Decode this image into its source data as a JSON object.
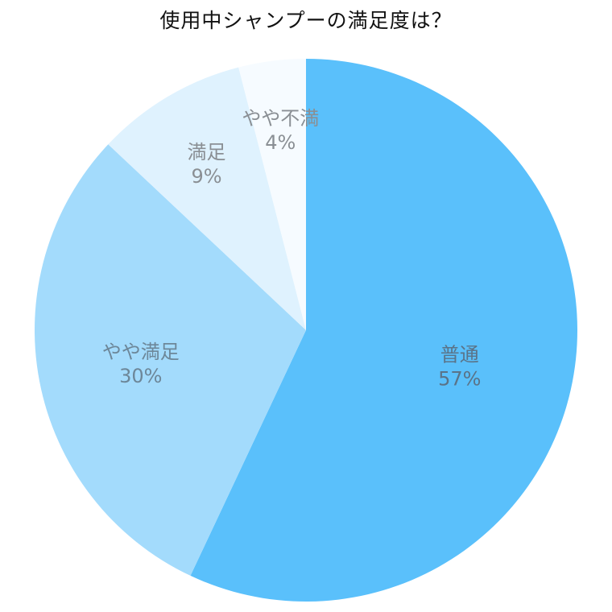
{
  "chart_data": {
    "type": "pie",
    "title": "使用中シャンプーの満足度は？",
    "slices": [
      {
        "label": "普通",
        "value": 57,
        "value_label": "57%",
        "color": "#5ac0fb",
        "text_color": "#5a7388"
      },
      {
        "label": "やや満足",
        "value": 30,
        "value_label": "30%",
        "color": "#a3dbfc",
        "text_color": "#6d8799"
      },
      {
        "label": "満足",
        "value": 9,
        "value_label": "9%",
        "color": "#dff2fe",
        "text_color": "#8a8f94"
      },
      {
        "label": "やや不満",
        "value": 4,
        "value_label": "4%",
        "color": "#f6fbff",
        "text_color": "#8a8f94"
      }
    ],
    "start_angle": "12 o'clock",
    "direction": "clockwise",
    "legend": "none"
  }
}
